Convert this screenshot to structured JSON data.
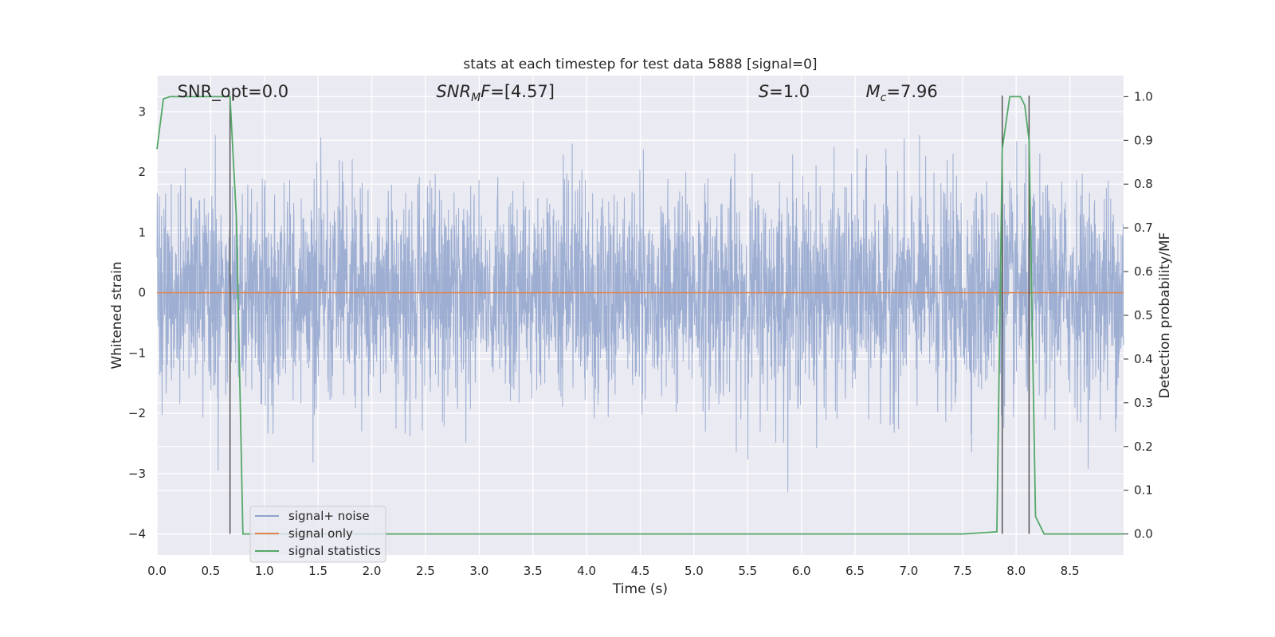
{
  "chart_data": {
    "type": "line",
    "title": "stats at each timestep for test data 5888 [signal=0]",
    "xlabel": "Time (s)",
    "ylabel": "Whitened strain",
    "ylabel_right": "Detection probability/MF",
    "xlim": [
      0.0,
      9.0
    ],
    "ylim": [
      -4.35,
      3.6
    ],
    "ylim_right": [
      -0.048,
      1.048
    ],
    "x_ticks": [
      "0.0",
      "0.5",
      "1.0",
      "1.5",
      "2.0",
      "2.5",
      "3.0",
      "3.5",
      "4.0",
      "4.5",
      "5.0",
      "5.5",
      "6.0",
      "6.5",
      "7.0",
      "7.5",
      "8.0",
      "8.5"
    ],
    "y_ticks": [
      "3",
      "2",
      "1",
      "0",
      "−1",
      "−2",
      "−3",
      "−4"
    ],
    "y_ticks_right": [
      "1.0",
      "0.9",
      "0.8",
      "0.7",
      "0.6",
      "0.5",
      "0.4",
      "0.3",
      "0.2",
      "0.1",
      "0.0"
    ],
    "grid": true,
    "legend_position": "bottom-left",
    "annotations": [
      {
        "id": "snr-opt",
        "text": "SNR_opt=0.0"
      },
      {
        "id": "snr-mf",
        "text": "SNR_MF=[4.57]"
      },
      {
        "id": "s-val",
        "text": "S=1.0"
      },
      {
        "id": "mc",
        "text": "M_c=7.96"
      }
    ],
    "series": [
      {
        "name": "signal+ noise",
        "color": "#8fa3cc",
        "noise_std": 0.88,
        "noise_range": [
          -3.6,
          3.0
        ],
        "note_values": "whitened strain noise samples, approx. Gaussian around 0"
      },
      {
        "name": "signal only",
        "color": "#dd8452",
        "x": [
          0.0,
          9.0
        ],
        "y": [
          0.0,
          0.0
        ]
      },
      {
        "name": "signal statistics",
        "color": "#55a868",
        "axis": "right",
        "x": [
          0.0,
          0.06,
          0.12,
          0.5,
          0.68,
          0.74,
          0.8,
          0.86,
          7.5,
          7.82,
          7.87,
          7.94,
          8.04,
          8.08,
          8.12,
          8.18,
          8.26,
          8.7,
          9.0
        ],
        "y": [
          0.88,
          0.995,
          1.0,
          1.0,
          1.0,
          0.72,
          0.0,
          0.0,
          0.0,
          0.005,
          0.88,
          1.0,
          1.0,
          0.98,
          0.9,
          0.04,
          0.0,
          0.0,
          0.0
        ]
      }
    ],
    "vlines": [
      {
        "x": 0.68,
        "y_range": [
          -4.0,
          3.27
        ]
      },
      {
        "x": 7.87,
        "y_range": [
          -4.0,
          3.27
        ]
      },
      {
        "x": 8.12,
        "y_range": [
          -4.0,
          3.27
        ]
      }
    ]
  }
}
